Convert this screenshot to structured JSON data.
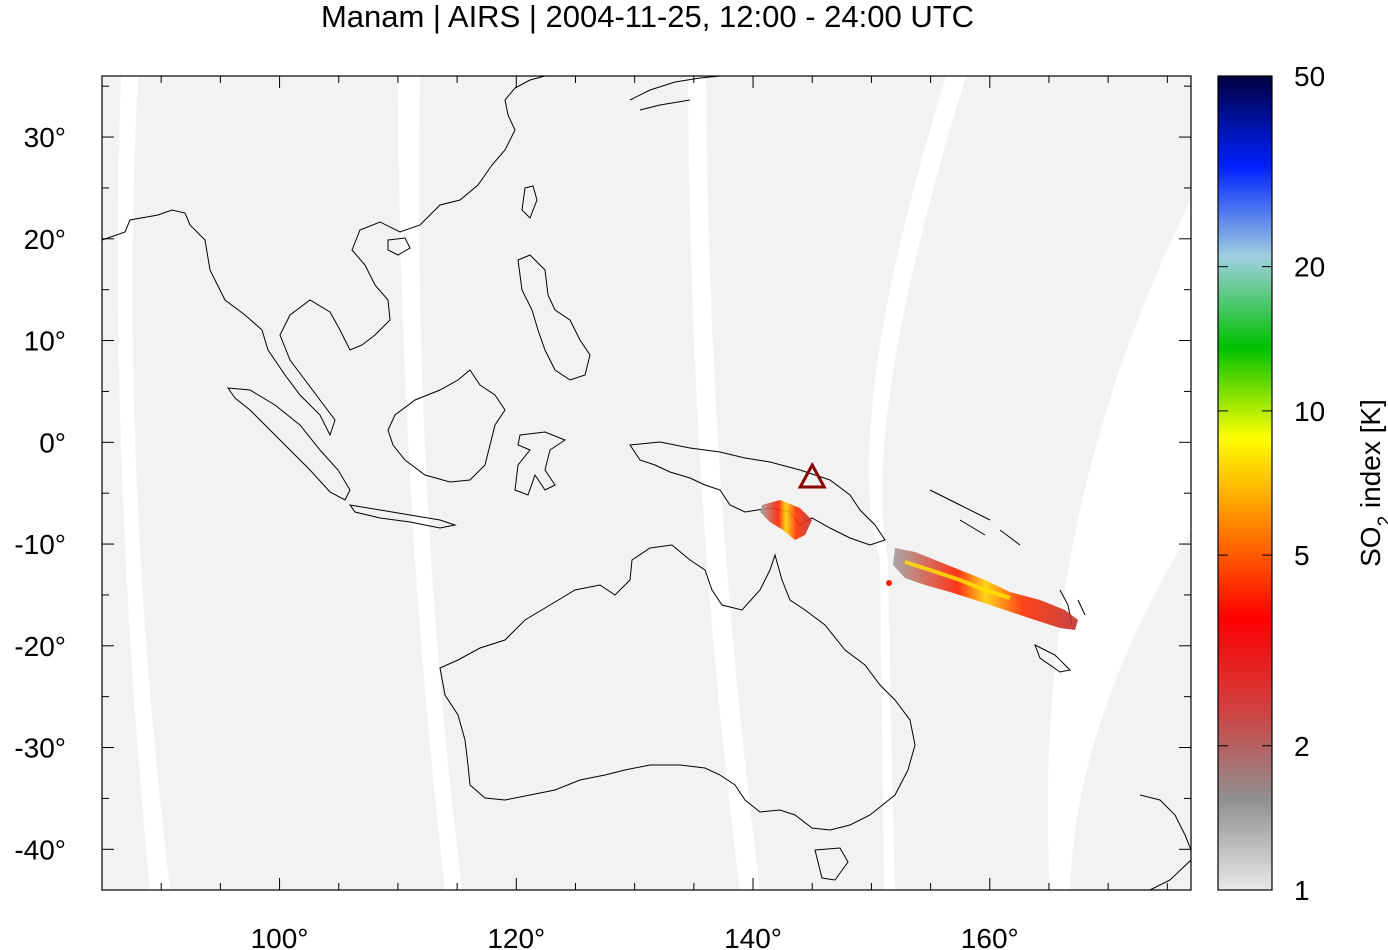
{
  "title": "Manam | AIRS | 2004-11-25, 12:00 - 24:00 UTC",
  "map": {
    "lon_range": [
      85,
      177
    ],
    "lat_range": [
      -44,
      36
    ],
    "lon_ticks": [
      {
        "value": 100,
        "label": "100°"
      },
      {
        "value": 120,
        "label": "120°"
      },
      {
        "value": 140,
        "label": "140°"
      },
      {
        "value": 160,
        "label": "160°"
      }
    ],
    "lat_ticks": [
      {
        "value": 30,
        "label": "30°"
      },
      {
        "value": 20,
        "label": "20°"
      },
      {
        "value": 10,
        "label": "10°"
      },
      {
        "value": 0,
        "label": "0°"
      },
      {
        "value": -10,
        "label": "-10°"
      },
      {
        "value": -20,
        "label": "-20°"
      },
      {
        "value": -30,
        "label": "-30°"
      },
      {
        "value": -40,
        "label": "-40°"
      }
    ],
    "volcano": {
      "name": "Manam",
      "lon": 145.0,
      "lat": -4.0,
      "marker": "triangle-icon",
      "color": "#8b0000"
    },
    "swath_color": "#f2f2f2",
    "coast_color": "#000000"
  },
  "colorbar": {
    "label_main": "SO",
    "label_sub": "2",
    "label_rest": " index [K]",
    "scale": "log",
    "range": [
      1,
      50
    ],
    "ticks": [
      {
        "value": 50,
        "label": "50"
      },
      {
        "value": 20,
        "label": "20"
      },
      {
        "value": 10,
        "label": "10"
      },
      {
        "value": 5,
        "label": "5"
      },
      {
        "value": 2,
        "label": "2"
      },
      {
        "value": 1,
        "label": "1"
      }
    ],
    "stops": [
      "#e8e8e8",
      "#909090",
      "#d04040",
      "#ff0000",
      "#ff8000",
      "#ffff00",
      "#00c000",
      "#a0d0e0",
      "#0020ff",
      "#000040"
    ]
  },
  "plumes": [
    {
      "name": "plume-west",
      "lon": [
        141.0,
        144.5
      ],
      "lat": [
        -6.5,
        -9.0
      ]
    },
    {
      "name": "plume-east",
      "lon": [
        152.0,
        167.0
      ],
      "lat": [
        -11.0,
        -18.5
      ]
    }
  ]
}
